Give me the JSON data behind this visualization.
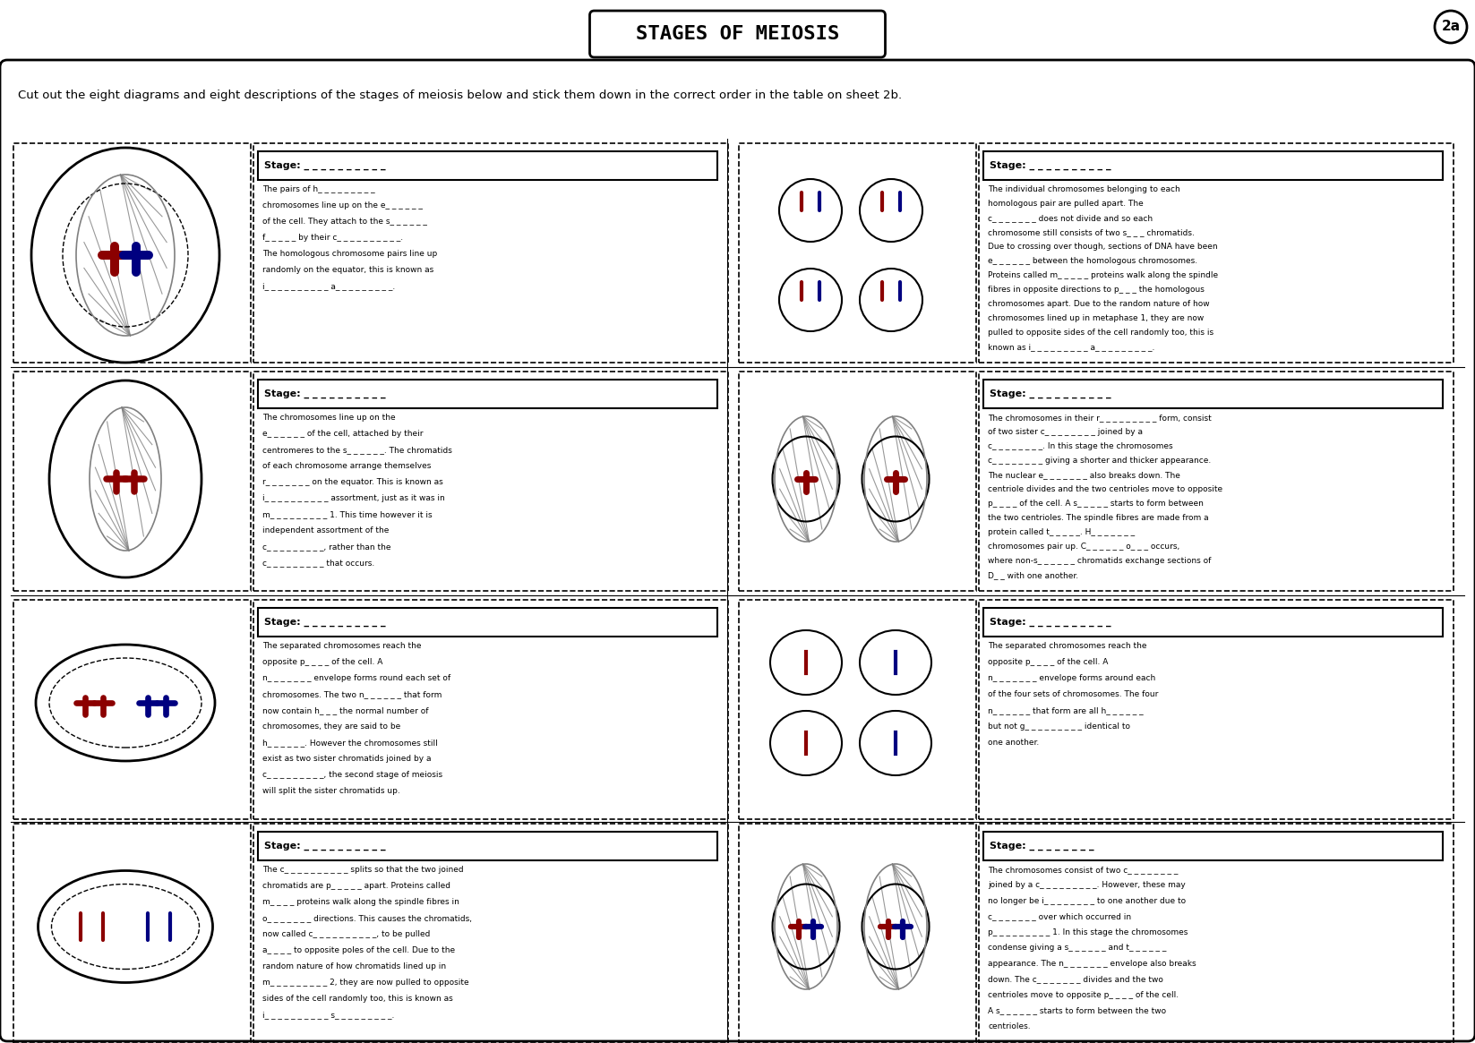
{
  "title": "STAGES OF MEIOSIS",
  "page_num": "2a",
  "instruction": "Cut out the eight diagrams and eight descriptions of the stages of meiosis below and stick them down in the correct order in the table on sheet 2b.",
  "bg_color": "#FFFFFF",
  "border_color": "#000000",
  "cell_texts": [
    {
      "stage_line": "Stage: _ _ _ _ _ _ _ _ _ _",
      "body": "The pairs of h_ _ _ _ _ _ _ _ _\nchromosomes line up on the e_ _ _ _ _ _\nof the cell. They attach to the s_ _ _ _ _ _\nf_ _ _ _ _ by their c_ _ _ _ _ _ _ _ _ _.\nThe homologous chromosome pairs line up\nrandomly on the equator, this is known as\ni_ _ _ _ _ _ _ _ _ _ a_ _ _ _ _ _ _ _ _."
    },
    {
      "stage_line": "Stage: _ _ _ _ _ _ _ _ _ _",
      "body": "The individual chromosomes belonging to each\nhomologous pair are pulled apart. The\nc_ _ _ _ _ _ _ does not divide and so each\nchromosome still consists of two s_ _ _ chromatids.\nDue to crossing over though, sections of DNA have been\ne_ _ _ _ _ _ between the homologous chromosomes.\nProteins called m_ _ _ _ _ proteins walk along the spindle\nfibres in opposite directions to p_ _ _ the homologous\nchromosomes apart. Due to the random nature of how\nchromosomes lined up in metaphase 1, they are now\npulled to opposite sides of the cell randomly too, this is\nknown as i_ _ _ _ _ _ _ _ _ a_ _ _ _ _ _ _ _ _."
    },
    {
      "stage_line": "Stage: _ _ _ _ _ _ _ _ _ _",
      "body": "The chromosomes line up on the\ne_ _ _ _ _ _ of the cell, attached by their\ncentromeres to the s_ _ _ _ _ _. The chromatids\nof each chromosome arrange themselves\nr_ _ _ _ _ _ _ on the equator. This is known as\ni_ _ _ _ _ _ _ _ _ _ assortment, just as it was in\nm_ _ _ _ _ _ _ _ _ 1. This time however it is\nindependent assortment of the\nc_ _ _ _ _ _ _ _ _, rather than the\nc_ _ _ _ _ _ _ _ _ that occurs."
    },
    {
      "stage_line": "Stage: _ _ _ _ _ _ _ _ _ _",
      "body": "The chromosomes in their r_ _ _ _ _ _ _ _ _ form, consist\nof two sister c_ _ _ _ _ _ _ _ joined by a\nc_ _ _ _ _ _ _ _. In this stage the chromosomes\nc_ _ _ _ _ _ _ _ giving a shorter and thicker appearance.\nThe nuclear e_ _ _ _ _ _ _ also breaks down. The\ncentriole divides and the two centrioles move to opposite\np_ _ _ _ of the cell. A s_ _ _ _ _ starts to form between\nthe two centrioles. The spindle fibres are made from a\nprotein called t_ _ _ _ _. H_ _ _ _ _ _ _\nchromosomes pair up. C_ _ _ _ _ _ o_ _ _ occurs,\nwhere non-s_ _ _ _ _ _ chromatids exchange sections of\nD_ _ with one another."
    },
    {
      "stage_line": "Stage: _ _ _ _ _ _ _ _ _ _",
      "body": "The separated chromosomes reach the\nopposite p_ _ _ _ of the cell. A\nn_ _ _ _ _ _ _ envelope forms round each set of\nchromosomes. The two n_ _ _ _ _ _ that form\nnow contain h_ _ _ the normal number of\nchromosomes, they are said to be\nh_ _ _ _ _ _. However the chromosomes still\nexist as two sister chromatids joined by a\nc_ _ _ _ _ _ _ _ _, the second stage of meiosis\nwill split the sister chromatids up."
    },
    {
      "stage_line": "Stage: _ _ _ _ _ _ _ _ _ _",
      "body": "The separated chromosomes reach the\nopposite p_ _ _ _ of the cell. A\nn_ _ _ _ _ _ _ envelope forms around each\nof the four sets of chromosomes. The four\nn_ _ _ _ _ _ that form are all h_ _ _ _ _ _\nbut not g_ _ _ _ _ _ _ _ _ identical to\none another."
    },
    {
      "stage_line": "Stage: _ _ _ _ _ _ _ _ _ _",
      "body": "The c_ _ _ _ _ _ _ _ _ _ splits so that the two joined\nchromatids are p_ _ _ _ _ apart. Proteins called\nm_ _ _ _ proteins walk along the spindle fibres in\no_ _ _ _ _ _ _ directions. This causes the chromatids,\nnow called c_ _ _ _ _ _ _ _ _ _, to be pulled\na_ _ _ _ to opposite poles of the cell. Due to the\nrandom nature of how chromatids lined up in\nm_ _ _ _ _ _ _ _ _ 2, they are now pulled to opposite\nsides of the cell randomly too, this is known as\ni_ _ _ _ _ _ _ _ _ _ s_ _ _ _ _ _ _ _ _."
    },
    {
      "stage_line": "Stage: _ _ _ _ _ _ _ _",
      "body": "The chromosomes consist of two c_ _ _ _ _ _ _ _\njoined by a c_ _ _ _ _ _ _ _ _. However, these may\nno longer be i_ _ _ _ _ _ _ _ to one another due to\nc_ _ _ _ _ _ _ over which occurred in\np_ _ _ _ _ _ _ _ _ 1. In this stage the chromosomes\ncondense giving a s_ _ _ _ _ _ and t_ _ _ _ _ _\nappearance. The n_ _ _ _ _ _ _ envelope also breaks\ndown. The c_ _ _ _ _ _ _ divides and the two\ncentrioles move to opposite p_ _ _ _ of the cell.\nA s_ _ _ _ _ _ starts to form between the two\ncentrioles."
    }
  ]
}
